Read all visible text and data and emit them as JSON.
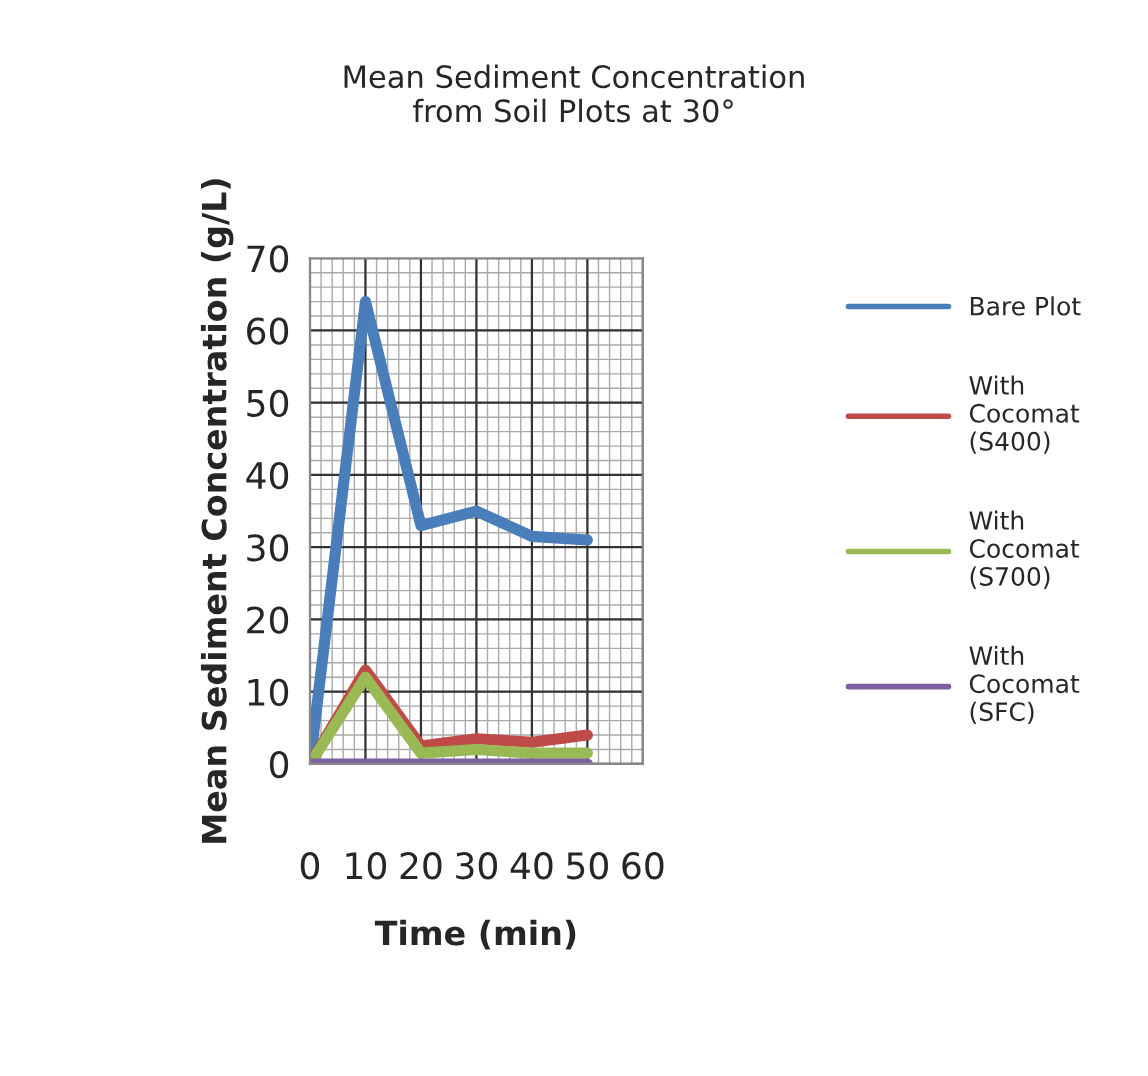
{
  "chart_data": {
    "type": "line",
    "title": "Mean Sediment Concentration\nfrom Soil Plots at 30°",
    "xlabel": "Time (min)",
    "ylabel": "Mean Sediment Concentration (g/L)",
    "x": [
      0,
      10,
      20,
      30,
      40,
      50
    ],
    "series": [
      {
        "name": "Bare Plot",
        "color": "#4a7ebb",
        "values": [
          0,
          64,
          33,
          35,
          31.5,
          31
        ]
      },
      {
        "name": "With\nCocomat\n(S400)",
        "color": "#be4b48",
        "values": [
          0,
          13,
          2.5,
          3.5,
          3,
          4
        ]
      },
      {
        "name": "With\nCocomat\n(S700)",
        "color": "#98b954",
        "values": [
          0,
          12,
          1.5,
          2,
          1.5,
          1.5
        ]
      },
      {
        "name": "With\nCocomat\n(SFC)",
        "color": "#7d60a0",
        "values": [
          0,
          0,
          0,
          0,
          0,
          0
        ]
      }
    ],
    "xlim": [
      0,
      60
    ],
    "xticks": [
      0,
      10,
      20,
      30,
      40,
      50,
      60
    ],
    "ylim": [
      0,
      70
    ],
    "yticks": [
      0,
      10,
      20,
      30,
      40,
      50,
      60,
      70
    ],
    "grid": true,
    "legend": "right",
    "marker": "none",
    "line_style": "solid"
  }
}
